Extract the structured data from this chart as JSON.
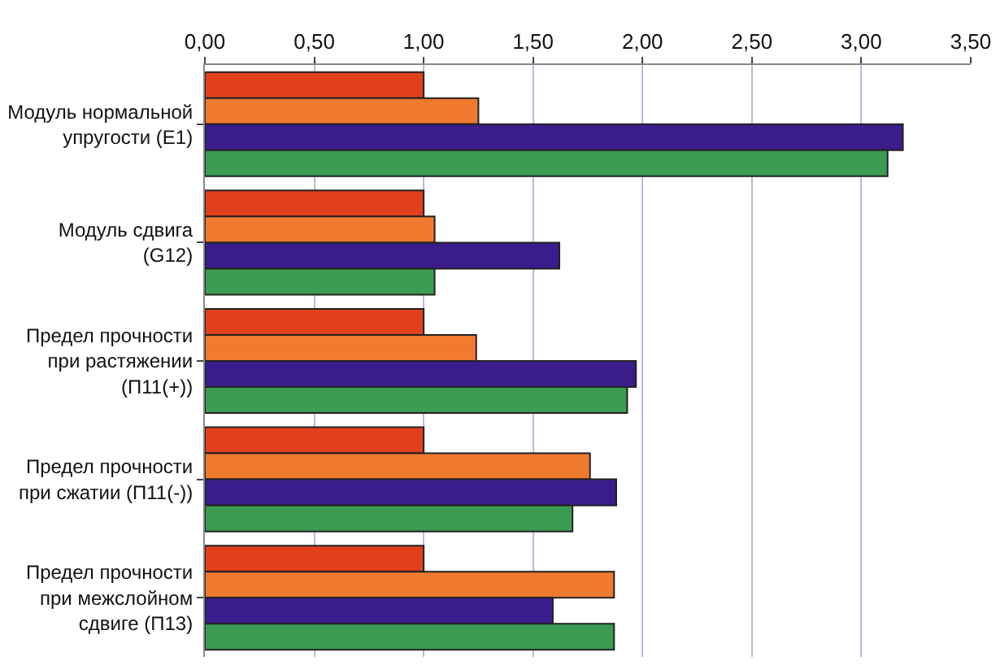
{
  "chart_data": {
    "type": "bar",
    "orientation": "horizontal",
    "categories": [
      "Модуль нормальной\nупругости (E1)",
      "Модуль сдвига\n(G12)",
      "Предел прочности\nпри растяжении\n(П11(+))",
      "Предел прочности\nпри сжатии (П11(-))",
      "Предел прочности\nпри межслойном\nсдвиге (П13)"
    ],
    "series": [
      {
        "color": "#e0401c",
        "values": [
          1.0,
          1.0,
          1.0,
          1.0,
          1.0
        ]
      },
      {
        "color": "#f07a30",
        "values": [
          1.25,
          1.05,
          1.24,
          1.76,
          1.87
        ]
      },
      {
        "color": "#3b1c8c",
        "values": [
          3.19,
          1.62,
          1.97,
          1.88,
          1.59
        ]
      },
      {
        "color": "#3c9c52",
        "values": [
          3.12,
          1.05,
          1.93,
          1.68,
          1.87
        ]
      }
    ],
    "xlim": [
      0,
      3.5
    ],
    "xticks": [
      {
        "value": 0,
        "label": "0,00"
      },
      {
        "value": 0.5,
        "label": "0,50"
      },
      {
        "value": 1,
        "label": "1,00"
      },
      {
        "value": 1.5,
        "label": "1,50"
      },
      {
        "value": 2,
        "label": "2,00"
      },
      {
        "value": 2.5,
        "label": "2,50"
      },
      {
        "value": 3,
        "label": "3,00"
      },
      {
        "value": 3.5,
        "label": "3,50"
      }
    ],
    "grid": "x"
  }
}
